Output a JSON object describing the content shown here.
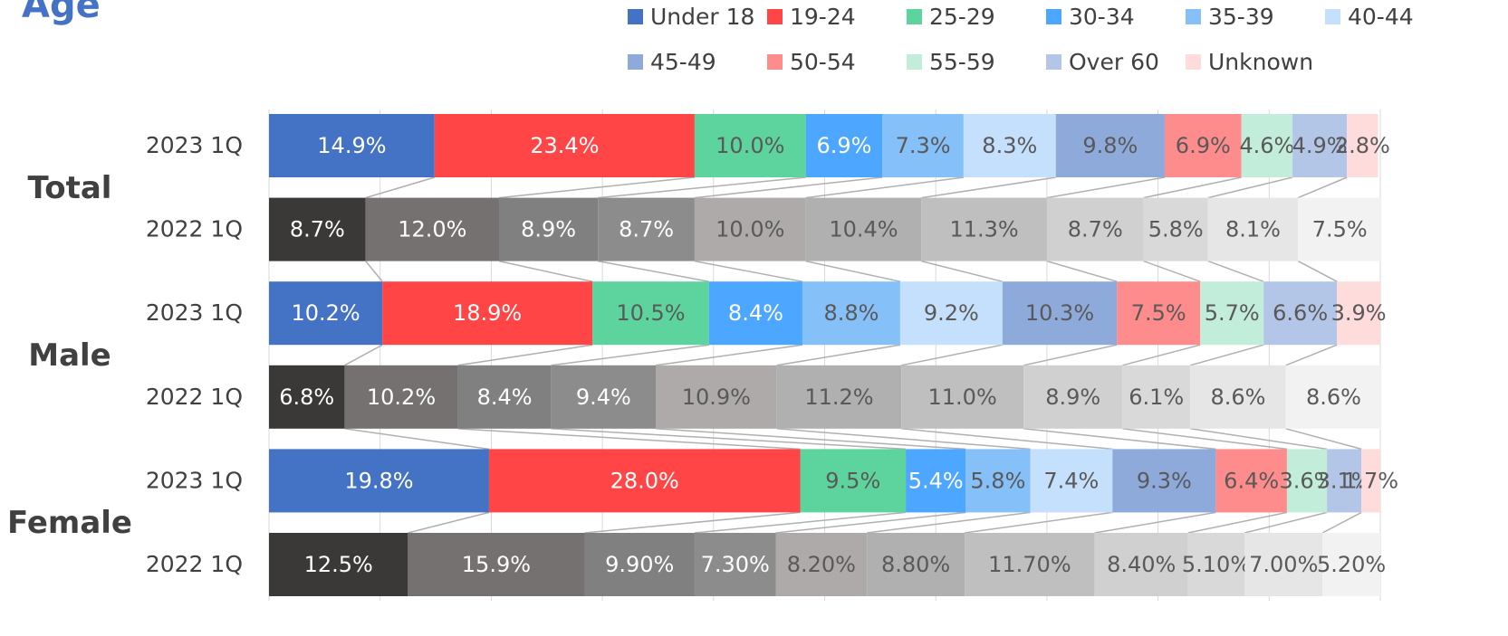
{
  "chart_data": {
    "type": "stacked-bar-horizontal",
    "title": "Age",
    "groups": [
      "Total",
      "Male",
      "Female"
    ],
    "categories": [
      "2023 1Q",
      "2022 1Q",
      "2023 1Q",
      "2022 1Q",
      "2023 1Q",
      "2022 1Q"
    ],
    "xlim": [
      0,
      100
    ],
    "xticks": [
      0,
      10,
      20,
      30,
      40,
      50,
      60,
      70,
      80,
      90,
      100
    ],
    "grid": true,
    "legend": "top",
    "prior_colors": [
      "#3b3838",
      "#767171",
      "#808080",
      "#8c8c8c",
      "#aeaaaa",
      "#b0b0b0",
      "#bfbfbf",
      "#d0d0d0",
      "#d9d9d9",
      "#e6e6e6",
      "#f2f2f2"
    ],
    "series": [
      {
        "name": "Under 18",
        "color": "#4472c4",
        "values": [
          14.9,
          8.7,
          10.2,
          6.8,
          19.8,
          12.5
        ],
        "value_labels": [
          "14.9%",
          "8.7%",
          "10.2%",
          "6.8%",
          "19.8%",
          "12.5%"
        ]
      },
      {
        "name": "19-24",
        "color": "#ff4545",
        "values": [
          23.4,
          12.0,
          18.9,
          10.2,
          28.0,
          15.9
        ],
        "value_labels": [
          "23.4%",
          "12.0%",
          "18.9%",
          "10.2%",
          "28.0%",
          "15.9%"
        ]
      },
      {
        "name": "25-29",
        "color": "#5dd39e",
        "values": [
          10.0,
          8.9,
          10.5,
          8.4,
          9.5,
          9.9
        ],
        "value_labels": [
          "10.0%",
          "8.9%",
          "10.5%",
          "8.4%",
          "9.5%",
          "9.90%"
        ]
      },
      {
        "name": "30-34",
        "color": "#4da6ff",
        "values": [
          6.9,
          8.7,
          8.4,
          9.4,
          5.4,
          7.3
        ],
        "value_labels": [
          "6.9%",
          "8.7%",
          "8.4%",
          "9.4%",
          "5.4%",
          "7.30%"
        ]
      },
      {
        "name": "35-39",
        "color": "#85c0f9",
        "values": [
          7.3,
          10.0,
          8.8,
          10.9,
          5.8,
          8.2
        ],
        "value_labels": [
          "7.3%",
          "10.0%",
          "8.8%",
          "10.9%",
          "5.8%",
          "8.20%"
        ]
      },
      {
        "name": "40-44",
        "color": "#c5e0fc",
        "values": [
          8.3,
          10.4,
          9.2,
          11.2,
          7.4,
          8.8
        ],
        "value_labels": [
          "8.3%",
          "10.4%",
          "9.2%",
          "11.2%",
          "7.4%",
          "8.80%"
        ]
      },
      {
        "name": "45-49",
        "color": "#8eaadb",
        "values": [
          9.8,
          11.3,
          10.3,
          11.0,
          9.3,
          11.7
        ],
        "value_labels": [
          "9.8%",
          "11.3%",
          "10.3%",
          "11.0%",
          "9.3%",
          "11.70%"
        ]
      },
      {
        "name": "50-54",
        "color": "#ff8c8c",
        "values": [
          6.9,
          8.7,
          7.5,
          8.9,
          6.4,
          8.4
        ],
        "value_labels": [
          "6.9%",
          "8.7%",
          "7.5%",
          "8.9%",
          "6.4%",
          "8.40%"
        ]
      },
      {
        "name": "55-59",
        "color": "#c3eddb",
        "values": [
          4.6,
          5.8,
          5.7,
          6.1,
          3.6,
          5.1
        ],
        "value_labels": [
          "4.6%",
          "5.8%",
          "5.7%",
          "6.1%",
          "3.6%",
          "5.10%"
        ]
      },
      {
        "name": "Over 60",
        "color": "#b4c6e7",
        "values": [
          4.9,
          8.1,
          6.6,
          8.6,
          3.1,
          7.0
        ],
        "value_labels": [
          "4.9%",
          "8.1%",
          "6.6%",
          "8.6%",
          "3.1%",
          "7.00%"
        ]
      },
      {
        "name": "Unknown",
        "color": "#ffdcdc",
        "values": [
          2.8,
          7.5,
          3.9,
          8.6,
          1.7,
          5.2
        ],
        "value_labels": [
          "2.8%",
          "7.5%",
          "3.9%",
          "8.6%",
          "1.7%",
          "5.20%"
        ]
      }
    ]
  }
}
